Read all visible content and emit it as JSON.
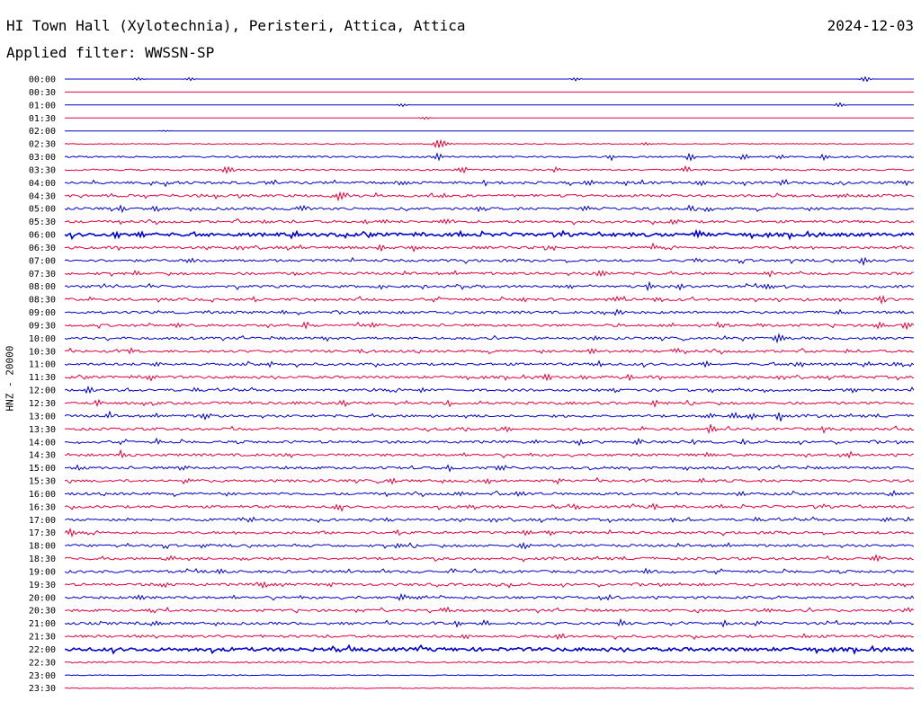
{
  "header": {
    "station": "HI Town Hall (Xylotechnia), Peristeri, Attica, Attica",
    "date": "2024-12-03",
    "filter_label": "Applied filter:",
    "filter": "WWSSN-SP"
  },
  "axis": {
    "channel_label": "HNZ - 20000"
  },
  "colors": {
    "odd_trace": "#0000cc",
    "even_trace": "#e8003c",
    "text": "#000000"
  },
  "chart_data": {
    "type": "line",
    "title": "",
    "ylabel": "HNZ - 20000",
    "row_labels": [
      "00:00",
      "00:30",
      "01:00",
      "01:30",
      "02:00",
      "02:30",
      "03:00",
      "03:30",
      "04:00",
      "04:30",
      "05:00",
      "05:30",
      "06:00",
      "06:30",
      "07:00",
      "07:30",
      "08:00",
      "08:30",
      "09:00",
      "09:30",
      "10:00",
      "10:30",
      "11:00",
      "11:30",
      "12:00",
      "12:30",
      "13:00",
      "13:30",
      "14:00",
      "14:30",
      "15:00",
      "15:30",
      "16:00",
      "16:30",
      "17:00",
      "17:30",
      "18:00",
      "18:30",
      "19:00",
      "19:30",
      "20:00",
      "20:30",
      "21:00",
      "21:30",
      "22:00",
      "22:30",
      "23:00",
      "23:30"
    ],
    "row_colors": [
      "blue",
      "red"
    ],
    "noise_level": [
      0,
      0,
      0,
      0,
      0,
      1,
      2,
      2,
      3,
      3,
      3,
      3,
      4,
      3,
      3,
      3,
      3,
      3,
      3,
      3,
      3,
      3,
      3,
      3,
      3,
      3,
      3,
      3,
      3,
      3,
      3,
      3,
      3,
      3,
      3,
      3,
      3,
      3,
      3,
      3,
      3,
      3,
      3,
      3,
      4,
      2,
      1,
      1
    ],
    "events": [
      [
        [
          8.7,
          2
        ],
        [
          14.8,
          2
        ],
        [
          60.2,
          2
        ],
        [
          94.3,
          3
        ]
      ],
      [],
      [
        [
          39.8,
          2
        ],
        [
          91.3,
          3
        ]
      ],
      [
        [
          42.4,
          2
        ]
      ],
      [
        [
          11.8,
          1
        ]
      ],
      [
        [
          43.9,
          5
        ],
        [
          44.8,
          3
        ],
        [
          68.5,
          2
        ]
      ],
      [
        [
          43.9,
          4
        ],
        [
          64.4,
          3
        ],
        [
          73.7,
          4
        ],
        [
          80.0,
          3
        ],
        [
          84.5,
          3
        ],
        [
          89.5,
          4
        ]
      ],
      [
        [
          19.2,
          6
        ],
        [
          46.8,
          4
        ],
        [
          57.8,
          3
        ],
        [
          73.1,
          4
        ]
      ],
      [
        [
          12.3,
          3
        ],
        [
          24.4,
          4
        ],
        [
          39.8,
          3
        ],
        [
          49.5,
          3
        ],
        [
          61.9,
          3
        ],
        [
          66.1,
          3
        ],
        [
          74.8,
          3
        ],
        [
          84.8,
          3
        ],
        [
          98.8,
          3
        ]
      ],
      [
        [
          32.6,
          4
        ],
        [
          44.6,
          3
        ],
        [
          91.6,
          3
        ]
      ],
      [
        [
          6.6,
          4
        ],
        [
          10.7,
          3
        ],
        [
          28.0,
          3
        ],
        [
          49.0,
          3
        ],
        [
          61.3,
          3
        ],
        [
          73.5,
          3
        ],
        [
          75.8,
          3
        ]
      ],
      [
        [
          23.7,
          3
        ],
        [
          35.2,
          3
        ],
        [
          37.3,
          3
        ],
        [
          44.8,
          3
        ],
        [
          71.9,
          3
        ]
      ],
      [
        [
          6.3,
          3
        ],
        [
          8.7,
          3
        ],
        [
          74.6,
          4
        ]
      ],
      [
        [
          27.5,
          3
        ],
        [
          37.3,
          3
        ],
        [
          41.1,
          3
        ],
        [
          57.4,
          3
        ],
        [
          69.2,
          3
        ]
      ],
      [
        [
          14.8,
          3
        ],
        [
          67.8,
          3
        ],
        [
          74.6,
          3
        ],
        [
          94.2,
          4
        ]
      ],
      [
        [
          8.6,
          4
        ],
        [
          27.4,
          3
        ],
        [
          63.2,
          4
        ],
        [
          82.8,
          3
        ]
      ],
      [
        [
          59.3,
          3
        ],
        [
          68.9,
          4
        ],
        [
          72.3,
          3
        ],
        [
          83.0,
          3
        ]
      ],
      [
        [
          65.0,
          3
        ],
        [
          54.0,
          3
        ],
        [
          69.9,
          3
        ],
        [
          96.2,
          3
        ]
      ],
      [
        [
          26.1,
          3
        ],
        [
          65.1,
          3
        ],
        [
          91.2,
          3
        ]
      ],
      [
        [
          13.1,
          3
        ],
        [
          28.4,
          3
        ],
        [
          36.5,
          3
        ],
        [
          77.7,
          3
        ],
        [
          82.1,
          3
        ],
        [
          96.0,
          3
        ],
        [
          99.2,
          3
        ]
      ],
      [
        [
          30.7,
          3
        ],
        [
          62.6,
          3
        ],
        [
          84.1,
          4
        ]
      ],
      [
        [
          7.9,
          3
        ],
        [
          35.0,
          3
        ],
        [
          62.1,
          3
        ],
        [
          72.0,
          3
        ],
        [
          92.2,
          3
        ]
      ],
      [
        [
          10.6,
          3
        ],
        [
          24.2,
          3
        ],
        [
          63.0,
          3
        ],
        [
          75.6,
          3
        ],
        [
          86.6,
          3
        ],
        [
          98.2,
          3
        ]
      ],
      [
        [
          10.2,
          4
        ],
        [
          56.8,
          4
        ],
        [
          61.0,
          3
        ],
        [
          66.4,
          3
        ]
      ],
      [
        [
          2.7,
          4
        ],
        [
          42.2,
          3
        ],
        [
          64.5,
          3
        ],
        [
          92.9,
          3
        ]
      ],
      [
        [
          4.0,
          3
        ],
        [
          27.2,
          3
        ],
        [
          33.0,
          3
        ],
        [
          45.1,
          3
        ],
        [
          69.5,
          3
        ]
      ],
      [
        [
          5.2,
          3
        ],
        [
          16.6,
          3
        ],
        [
          75.8,
          4
        ],
        [
          78.9,
          4
        ],
        [
          81.0,
          4
        ],
        [
          84.1,
          4
        ]
      ],
      [
        [
          52.0,
          3
        ],
        [
          76.3,
          3
        ],
        [
          89.4,
          3
        ]
      ],
      [
        [
          10.9,
          3
        ],
        [
          60.5,
          3
        ],
        [
          67.6,
          3
        ],
        [
          73.9,
          3
        ],
        [
          79.7,
          3
        ]
      ],
      [
        [
          6.7,
          3
        ],
        [
          26.5,
          3
        ],
        [
          75.9,
          3
        ],
        [
          92.5,
          3
        ]
      ],
      [
        [
          1.5,
          4
        ],
        [
          14.0,
          3
        ],
        [
          45.3,
          3
        ],
        [
          51.5,
          4
        ],
        [
          72.9,
          3
        ]
      ],
      [
        [
          14.2,
          3
        ],
        [
          38.6,
          3
        ],
        [
          50.0,
          3
        ],
        [
          58.1,
          3
        ],
        [
          75.0,
          3
        ]
      ],
      [
        [
          46.5,
          3
        ],
        [
          53.5,
          3
        ],
        [
          79.8,
          3
        ],
        [
          97.7,
          4
        ]
      ],
      [
        [
          32.1,
          3
        ],
        [
          48.0,
          3
        ],
        [
          60.1,
          3
        ],
        [
          69.5,
          3
        ]
      ],
      [
        [
          21.9,
          3
        ],
        [
          38.1,
          3
        ],
        [
          71.5,
          3
        ],
        [
          96.6,
          4
        ]
      ],
      [
        [
          0.6,
          4
        ],
        [
          39.1,
          3
        ],
        [
          54.3,
          3
        ],
        [
          57.2,
          3
        ]
      ],
      [
        [
          16.4,
          3
        ],
        [
          39.3,
          3
        ],
        [
          54.1,
          3
        ]
      ],
      [
        [
          12.4,
          4
        ],
        [
          21.1,
          3
        ],
        [
          95.6,
          4
        ]
      ],
      [
        [
          18.5,
          3
        ],
        [
          68.6,
          4
        ]
      ],
      [
        [
          11.8,
          3
        ],
        [
          23.3,
          4
        ],
        [
          31.0,
          3
        ]
      ],
      [
        [
          8.9,
          3
        ],
        [
          39.7,
          4
        ],
        [
          42.0,
          3
        ],
        [
          63.8,
          3
        ]
      ],
      [
        [
          10.2,
          3
        ],
        [
          34.6,
          3
        ],
        [
          44.8,
          4
        ],
        [
          83.0,
          3
        ],
        [
          99.5,
          3
        ]
      ],
      [
        [
          10.7,
          3
        ],
        [
          46.2,
          3
        ],
        [
          49.6,
          3
        ],
        [
          65.4,
          4
        ],
        [
          77.6,
          3
        ],
        [
          81.5,
          3
        ]
      ],
      [
        [
          47.2,
          3
        ],
        [
          58.3,
          4
        ],
        [
          87.2,
          3
        ]
      ],
      [],
      [],
      [],
      []
    ]
  }
}
